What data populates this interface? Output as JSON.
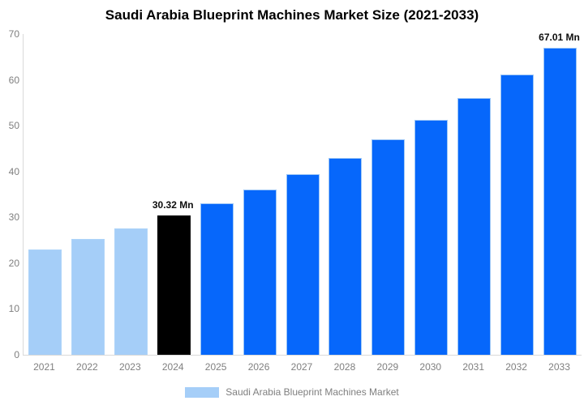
{
  "title": "Saudi Arabia Blueprint Machines Market Size (2021-2033)",
  "colors": {
    "lightblue": "#A5CEF8",
    "blue": "#0667FB",
    "black": "#000000",
    "axis_text": "#7f7f7f",
    "axis_line": "#d9d9d9",
    "value_label_text": "#0d0d0d",
    "background": "#ffffff"
  },
  "chart_data": {
    "type": "bar",
    "title": "Saudi Arabia Blueprint Machines Market Size (2021-2033)",
    "categories": [
      "2021",
      "2022",
      "2023",
      "2024",
      "2025",
      "2026",
      "2027",
      "2028",
      "2029",
      "2030",
      "2031",
      "2032",
      "2033"
    ],
    "values": [
      23.0,
      25.2,
      27.5,
      30.32,
      33.0,
      36.0,
      39.4,
      43.0,
      47.0,
      51.3,
      56.0,
      61.2,
      67.01
    ],
    "unit": "Mn",
    "bar_color_roles": [
      "lightblue",
      "lightblue",
      "lightblue",
      "black",
      "blue",
      "blue",
      "blue",
      "blue",
      "blue",
      "blue",
      "blue",
      "blue",
      "blue"
    ],
    "xlabel": "",
    "ylabel": "",
    "ylim": [
      0,
      70
    ],
    "yticks": [
      0,
      10,
      20,
      30,
      40,
      50,
      60,
      70
    ],
    "grid": false,
    "legend_position": "bottom",
    "annotations": [
      {
        "category": "2024",
        "text": "30.32 Mn"
      },
      {
        "category": "2033",
        "text": "67.01 Mn"
      }
    ]
  },
  "legend": {
    "label": "Saudi Arabia Blueprint Machines Market"
  }
}
